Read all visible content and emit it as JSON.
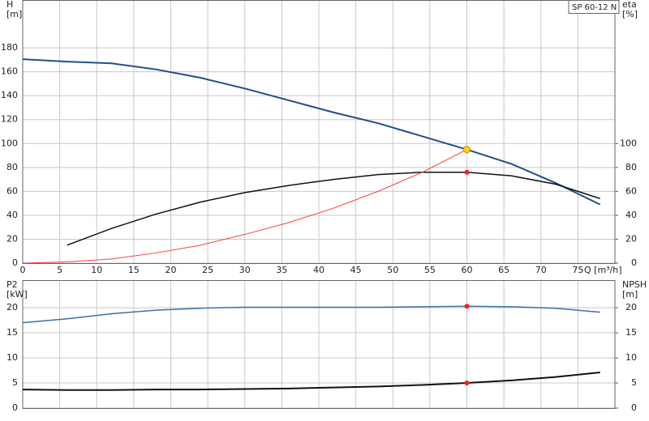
{
  "chart_data": [
    {
      "type": "line",
      "title": "SP 60-12 N",
      "y_label": "H",
      "y_unit": "[m]",
      "y2_label": "eta",
      "y2_unit": "[%]",
      "x_label": "Q [m³/h]",
      "xlim": [
        0,
        80
      ],
      "xticks": [
        0,
        5,
        10,
        15,
        20,
        25,
        30,
        35,
        40,
        45,
        50,
        55,
        60,
        65,
        70,
        75
      ],
      "ylim": [
        0,
        220
      ],
      "yticks": [
        0,
        20,
        40,
        60,
        80,
        100,
        120,
        140,
        160,
        180
      ],
      "y2lim": [
        0,
        220
      ],
      "y2ticks": [
        0,
        20,
        40,
        60,
        80,
        100
      ],
      "grid": true,
      "series": [
        {
          "color": "#1f4e8c",
          "width": 2,
          "x": [
            0,
            6,
            12,
            18,
            24,
            30,
            36,
            42,
            48,
            54,
            60,
            66,
            72,
            78
          ],
          "values": [
            170.5,
            168.5,
            167,
            162,
            155,
            146,
            136,
            126,
            117,
            106,
            95,
            83,
            67,
            49
          ]
        },
        {
          "color": "#111111",
          "width": 1.5,
          "axis": "y2",
          "x": [
            6,
            12,
            18,
            24,
            30,
            36,
            42,
            48,
            54,
            60,
            66,
            72,
            78
          ],
          "values": [
            15,
            29,
            41,
            51,
            59,
            65,
            70,
            74,
            76,
            76,
            73,
            66,
            54
          ]
        },
        {
          "color": "#ff3b3b",
          "width": 1,
          "x": [
            0,
            6,
            12,
            18,
            24,
            30,
            36,
            42,
            48,
            54,
            60
          ],
          "values": [
            0,
            1,
            3.5,
            8.5,
            15,
            24,
            34,
            46,
            60,
            76,
            95
          ]
        }
      ],
      "markers": [
        {
          "x": 60,
          "y": 95,
          "color": "#ffd400"
        },
        {
          "x": 60,
          "y": 76,
          "color": "#ff1a1a",
          "axis": "y2"
        }
      ]
    },
    {
      "type": "line",
      "y_label": "P2",
      "y_unit": "[kW]",
      "y2_label": "NPSH",
      "y2_unit": "[m]",
      "xlim": [
        0,
        80
      ],
      "ylim": [
        0,
        25.5
      ],
      "yticks": [
        0,
        5,
        10,
        15,
        20
      ],
      "y2lim": [
        0,
        25.5
      ],
      "y2ticks": [
        0,
        5,
        10,
        15,
        20
      ],
      "grid": true,
      "series": [
        {
          "color": "#3a6fb0",
          "width": 1.5,
          "x": [
            0,
            6,
            12,
            18,
            24,
            30,
            36,
            42,
            48,
            54,
            60,
            66,
            72,
            78
          ],
          "values": [
            17,
            17.8,
            18.8,
            19.5,
            19.9,
            20.1,
            20.1,
            20.1,
            20.1,
            20.2,
            20.3,
            20.2,
            19.9,
            19.1
          ]
        },
        {
          "color": "#111111",
          "width": 2,
          "axis": "y2",
          "x": [
            0,
            6,
            12,
            18,
            24,
            30,
            36,
            42,
            48,
            54,
            60,
            66,
            72,
            78
          ],
          "values": [
            3.7,
            3.6,
            3.6,
            3.7,
            3.7,
            3.8,
            3.9,
            4.1,
            4.3,
            4.6,
            5.0,
            5.5,
            6.2,
            7.1
          ]
        }
      ],
      "markers": [
        {
          "x": 60,
          "y": 20.3,
          "color": "#ff1a1a"
        },
        {
          "x": 60,
          "y": 5,
          "color": "#ff1a1a",
          "axis": "y2"
        }
      ]
    }
  ]
}
